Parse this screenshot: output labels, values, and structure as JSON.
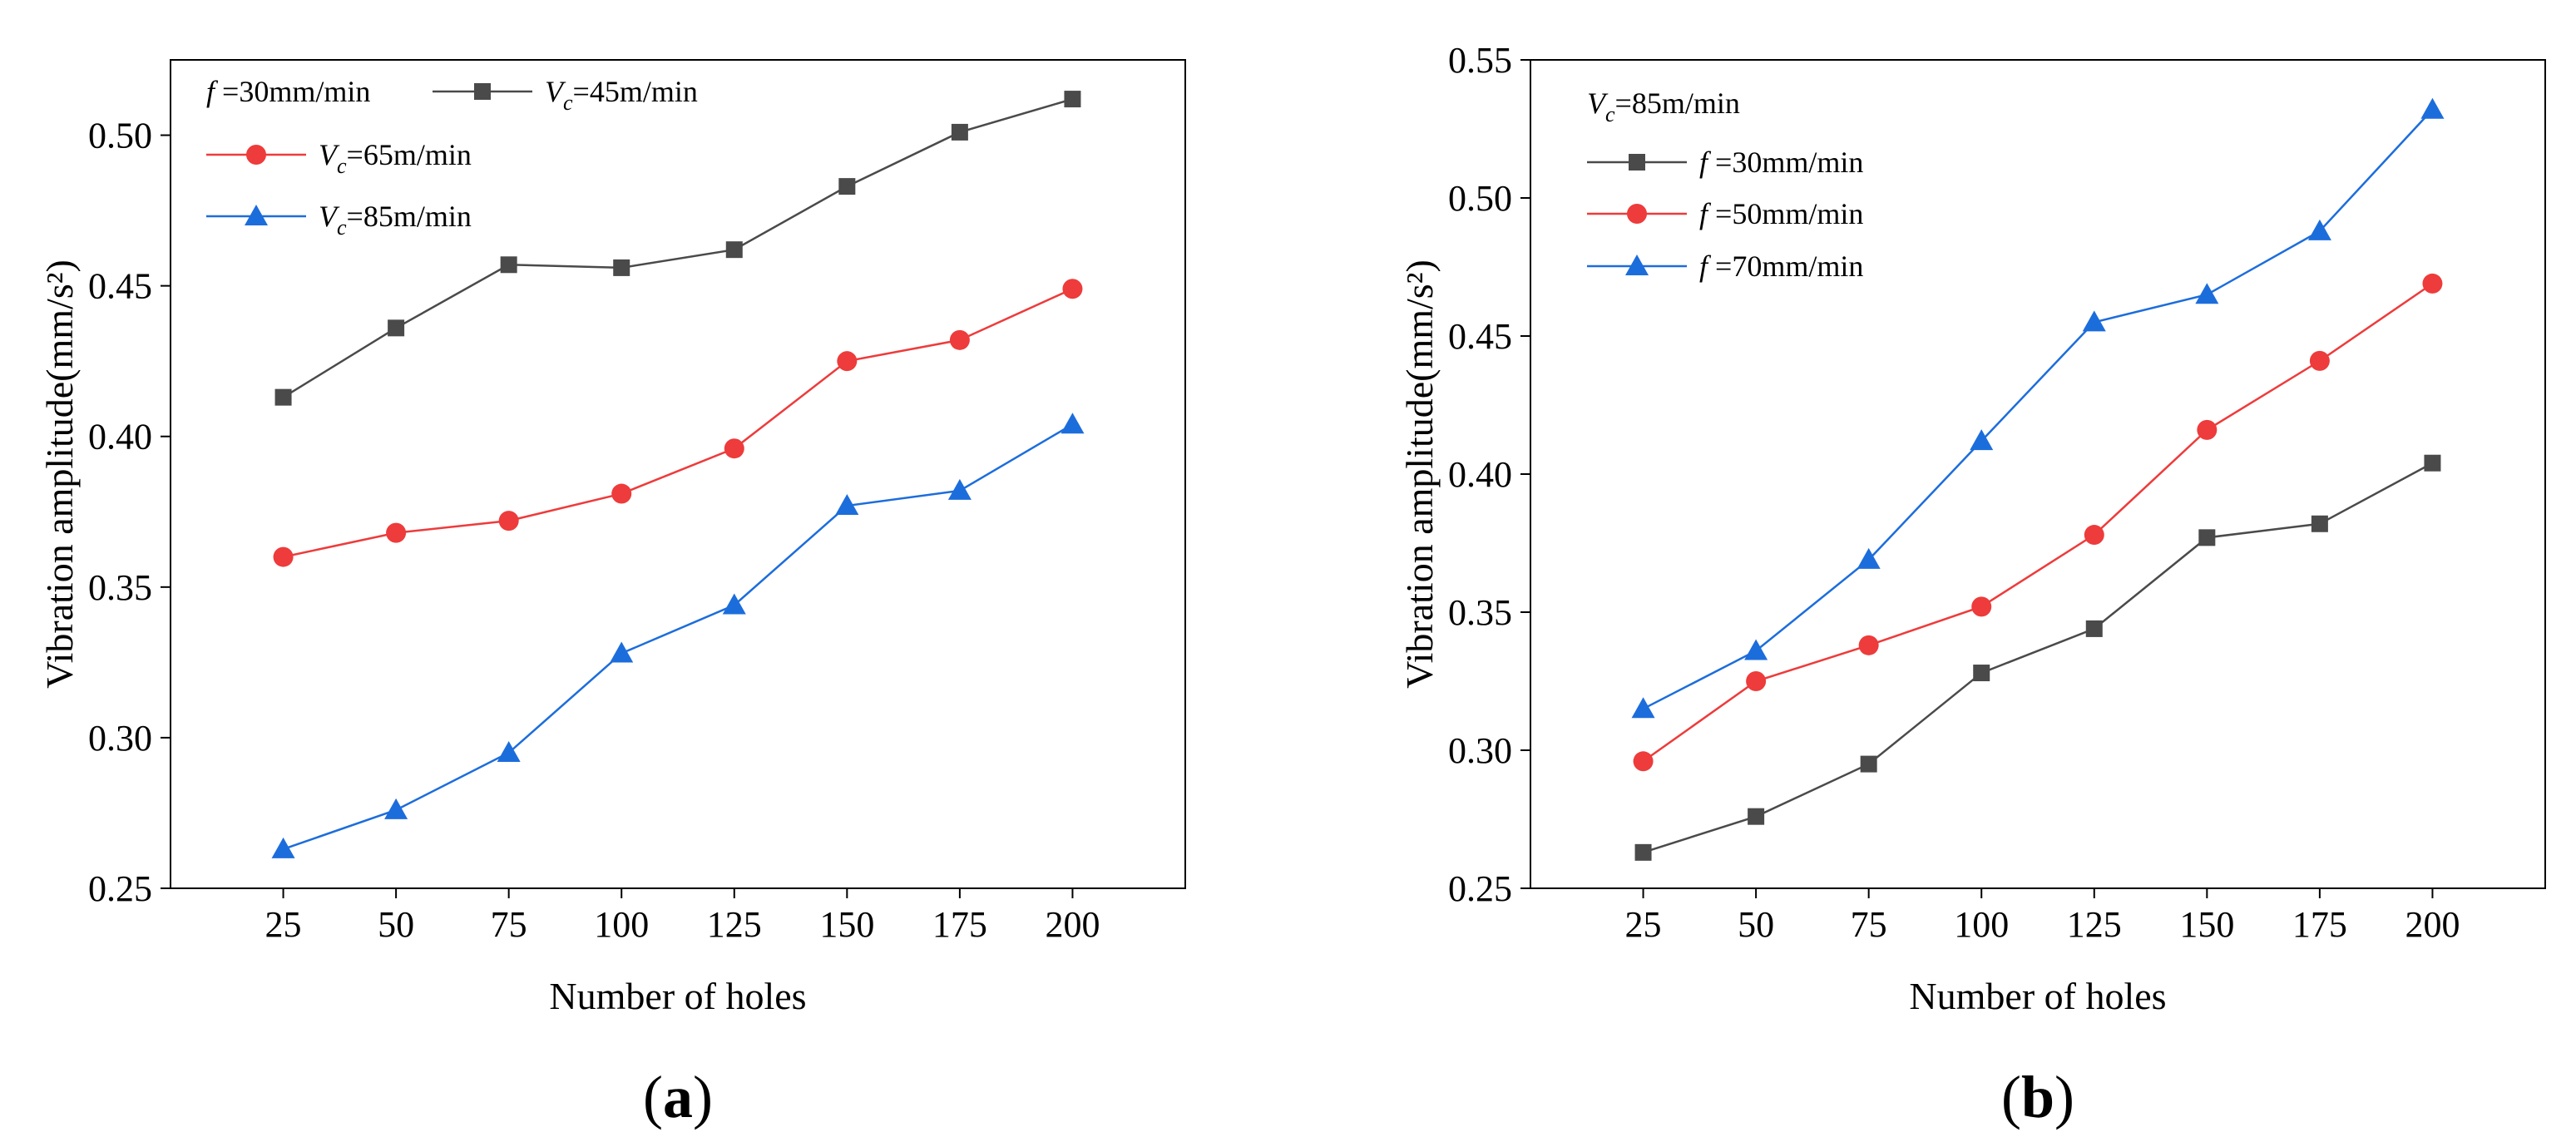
{
  "chart_data": [
    {
      "type": "line",
      "panel": "(a)",
      "panel_open": "(",
      "panel_letter": "a",
      "panel_close": ")",
      "xlabel": "Number of holes",
      "ylabel": "Vibration amplitude(mm/s²)",
      "x": [
        25,
        50,
        75,
        100,
        125,
        150,
        175,
        200
      ],
      "xlim": [
        0,
        225
      ],
      "ylim": [
        0.25,
        0.525
      ],
      "yticks": [
        "0.25",
        "0.30",
        "0.35",
        "0.40",
        "0.45",
        "0.50"
      ],
      "ytick_values": [
        0.25,
        0.3,
        0.35,
        0.4,
        0.45,
        0.5
      ],
      "xticks": [
        "25",
        "50",
        "75",
        "100",
        "125",
        "150",
        "175",
        "200"
      ],
      "legend_header": "f=30mm/min",
      "series": [
        {
          "name": "Vc=45m/min",
          "color": "#4a4a4a",
          "marker": "square",
          "values": [
            0.413,
            0.436,
            0.457,
            0.456,
            0.462,
            0.483,
            0.501,
            0.512
          ]
        },
        {
          "name": "Vc=65m/min",
          "color": "#ee3b3b",
          "marker": "circle",
          "values": [
            0.36,
            0.368,
            0.372,
            0.381,
            0.396,
            0.425,
            0.432,
            0.449
          ]
        },
        {
          "name": "Vc=85m/min",
          "color": "#1c6ddc",
          "marker": "triangle",
          "values": [
            0.263,
            0.276,
            0.295,
            0.328,
            0.344,
            0.377,
            0.382,
            0.404
          ]
        }
      ]
    },
    {
      "type": "line",
      "panel": "(b)",
      "panel_open": "(",
      "panel_letter": "b",
      "panel_close": ")",
      "xlabel": "Number of holes",
      "ylabel": "Vibration amplitude(mm/s²)",
      "x": [
        25,
        50,
        75,
        100,
        125,
        150,
        175,
        200
      ],
      "xlim": [
        0,
        225
      ],
      "ylim": [
        0.25,
        0.55
      ],
      "yticks": [
        "0.25",
        "0.30",
        "0.35",
        "0.40",
        "0.45",
        "0.50",
        "0.55"
      ],
      "ytick_values": [
        0.25,
        0.3,
        0.35,
        0.4,
        0.45,
        0.5,
        0.55
      ],
      "xticks": [
        "25",
        "50",
        "75",
        "100",
        "125",
        "150",
        "175",
        "200"
      ],
      "legend_header": "Vc=85m/min",
      "series": [
        {
          "name": "f=30mm/min",
          "color": "#4a4a4a",
          "marker": "square",
          "values": [
            0.263,
            0.276,
            0.295,
            0.328,
            0.344,
            0.377,
            0.382,
            0.404
          ]
        },
        {
          "name": "f=50mm/min",
          "color": "#ee3b3b",
          "marker": "circle",
          "values": [
            0.296,
            0.325,
            0.338,
            0.352,
            0.378,
            0.416,
            0.441,
            0.469
          ]
        },
        {
          "name": "f=70mm/min",
          "color": "#1c6ddc",
          "marker": "triangle",
          "values": [
            0.315,
            0.336,
            0.369,
            0.412,
            0.455,
            0.465,
            0.488,
            0.532
          ]
        }
      ]
    }
  ]
}
